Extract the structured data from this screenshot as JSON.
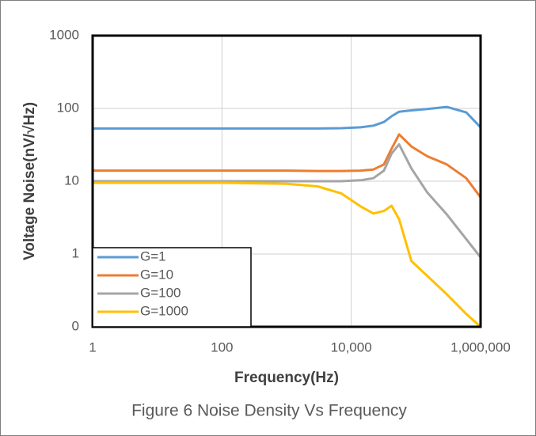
{
  "chart_data": {
    "type": "line",
    "x_label": "Frequency(Hz)",
    "y_label": "Voltage Noise(nV/√Hz)",
    "caption": "Figure 6 Noise  Density Vs Frequency",
    "x": [
      1,
      100,
      1000,
      3000,
      7000,
      14000,
      22000,
      32000,
      42000,
      55000,
      85000,
      150000,
      300000,
      600000,
      1000000
    ],
    "series": [
      {
        "name": "G=1",
        "color": "#5b9bd5",
        "values": [
          53,
          53,
          53,
          53,
          53.5,
          55,
          58,
          65,
          78,
          90,
          94,
          98,
          105,
          88,
          55
        ]
      },
      {
        "name": "G=10",
        "color": "#ed7d31",
        "values": [
          14,
          14,
          14,
          13.8,
          13.8,
          14,
          14.5,
          17,
          28,
          44,
          30,
          22,
          17,
          11,
          6
        ]
      },
      {
        "name": "G=100",
        "color": "#a5a5a5",
        "values": [
          10,
          10,
          10,
          10,
          10,
          10.3,
          11,
          14,
          24,
          32,
          15,
          7,
          3.5,
          1.6,
          0.9
        ]
      },
      {
        "name": "G=1000",
        "color": "#ffc000",
        "values": [
          9.5,
          9.5,
          9.2,
          8.5,
          6.8,
          4.5,
          3.6,
          3.9,
          4.6,
          3,
          0.8,
          0.5,
          0.28,
          0.15,
          0.1
        ]
      }
    ],
    "xlim": [
      1,
      1000000
    ],
    "xlog": true,
    "xticks": [
      1,
      100,
      {
        "value": 10000,
        "label": "10,000"
      },
      {
        "value": 1000000,
        "label": "1,000,000"
      }
    ],
    "ylim": [
      0.1,
      1000
    ],
    "ylog": true,
    "yticks": [
      {
        "value": 0.1,
        "label": "0"
      },
      1,
      10,
      100,
      1000
    ],
    "grid": true,
    "legend": "lower left"
  }
}
